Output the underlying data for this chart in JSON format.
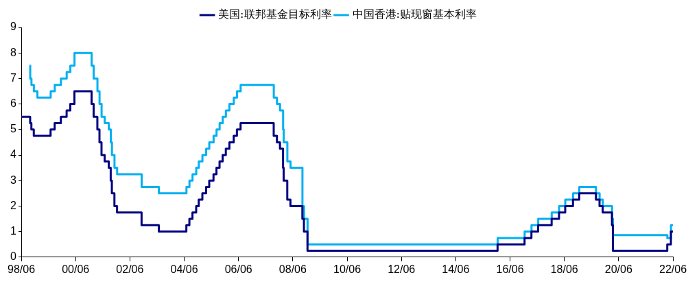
{
  "chart_data": {
    "type": "step",
    "series": [
      {
        "name": "美国:联邦基金目标利率",
        "color": "#000080",
        "x": [
          "1998-06-01",
          "1998-09-29",
          "1998-10-15",
          "1998-11-17",
          "1999-06-30",
          "1999-08-24",
          "1999-11-16",
          "2000-02-02",
          "2000-03-21",
          "2000-05-16",
          "2001-01-03",
          "2001-01-31",
          "2001-03-20",
          "2001-04-18",
          "2001-05-15",
          "2001-06-27",
          "2001-08-21",
          "2001-09-17",
          "2001-10-02",
          "2001-11-06",
          "2001-12-11",
          "2002-11-06",
          "2003-06-25",
          "2004-06-30",
          "2004-08-10",
          "2004-09-21",
          "2004-11-10",
          "2004-12-14",
          "2005-02-02",
          "2005-03-22",
          "2005-05-03",
          "2005-06-30",
          "2005-08-09",
          "2005-09-20",
          "2005-11-01",
          "2005-12-13",
          "2006-01-31",
          "2006-03-28",
          "2006-05-10",
          "2006-06-29",
          "2007-09-18",
          "2007-10-31",
          "2007-12-11",
          "2008-01-22",
          "2008-01-30",
          "2008-03-18",
          "2008-04-30",
          "2008-10-08",
          "2008-10-29",
          "2008-12-16",
          "2015-12-16",
          "2016-12-14",
          "2017-03-15",
          "2017-06-14",
          "2017-12-13",
          "2018-03-21",
          "2018-06-13",
          "2018-09-26",
          "2018-12-19",
          "2019-07-31",
          "2019-09-18",
          "2019-10-30",
          "2020-03-03",
          "2020-03-15",
          "2022-03-16",
          "2022-05-04",
          "2022-06-01"
        ],
        "values": [
          5.5,
          5.25,
          5.0,
          4.75,
          5.0,
          5.25,
          5.5,
          5.75,
          6.0,
          6.5,
          6.0,
          5.5,
          5.0,
          4.5,
          4.0,
          3.75,
          3.5,
          3.0,
          2.5,
          2.0,
          1.75,
          1.25,
          1.0,
          1.25,
          1.5,
          1.75,
          2.0,
          2.25,
          2.5,
          2.75,
          3.0,
          3.25,
          3.5,
          3.75,
          4.0,
          4.25,
          4.5,
          4.75,
          5.0,
          5.25,
          4.75,
          4.5,
          4.25,
          3.5,
          3.0,
          2.25,
          2.0,
          1.5,
          1.0,
          0.25,
          0.5,
          0.75,
          1.0,
          1.25,
          1.5,
          1.75,
          2.0,
          2.25,
          2.5,
          2.25,
          2.0,
          1.75,
          1.25,
          0.25,
          0.5,
          1.0,
          1.0
        ]
      },
      {
        "name": "中国香港:贴现窗基本利率",
        "color": "#00b0f0",
        "x": [
          "1998-09-20",
          "1998-09-30",
          "1998-10-16",
          "1998-11-18",
          "1999-01-05",
          "1999-07-01",
          "1999-08-25",
          "1999-11-17",
          "2000-02-03",
          "2000-03-22",
          "2000-05-17",
          "2001-01-04",
          "2001-02-01",
          "2001-03-21",
          "2001-04-19",
          "2001-05-16",
          "2001-06-28",
          "2001-08-22",
          "2001-09-18",
          "2001-10-03",
          "2001-11-07",
          "2001-12-12",
          "2002-11-07",
          "2003-06-26",
          "2004-07-01",
          "2004-08-11",
          "2004-09-22",
          "2004-11-11",
          "2004-12-15",
          "2005-02-03",
          "2005-03-23",
          "2005-05-04",
          "2005-07-01",
          "2005-08-10",
          "2005-09-21",
          "2005-11-02",
          "2005-12-14",
          "2006-02-01",
          "2006-03-29",
          "2006-05-11",
          "2006-06-30",
          "2007-09-19",
          "2007-11-01",
          "2007-12-12",
          "2008-01-23",
          "2008-01-31",
          "2008-03-19",
          "2008-05-01",
          "2008-10-09",
          "2008-10-30",
          "2008-12-17",
          "2015-12-17",
          "2016-12-15",
          "2017-03-16",
          "2017-06-15",
          "2017-12-14",
          "2018-03-22",
          "2018-06-14",
          "2018-09-27",
          "2018-12-20",
          "2019-08-01",
          "2019-09-19",
          "2019-10-31",
          "2020-03-04",
          "2020-03-16",
          "2022-03-17",
          "2022-05-05",
          "2022-06-01"
        ],
        "values": [
          7.5,
          7.0,
          6.75,
          6.5,
          6.25,
          6.5,
          6.75,
          7.0,
          7.25,
          7.5,
          8.0,
          7.5,
          7.0,
          6.5,
          6.0,
          5.5,
          5.25,
          5.0,
          4.5,
          4.0,
          3.5,
          3.25,
          2.75,
          2.5,
          2.75,
          3.0,
          3.25,
          3.5,
          3.75,
          4.0,
          4.25,
          4.5,
          4.75,
          5.0,
          5.25,
          5.5,
          5.75,
          6.0,
          6.25,
          6.5,
          6.75,
          6.25,
          6.0,
          5.75,
          5.0,
          4.5,
          3.75,
          3.5,
          2.0,
          1.5,
          0.5,
          0.75,
          1.0,
          1.25,
          1.5,
          1.75,
          2.0,
          2.25,
          2.5,
          2.75,
          2.5,
          2.25,
          2.0,
          1.5,
          0.86,
          0.75,
          1.25,
          1.25
        ]
      }
    ],
    "xlim": [
      "1998-06",
      "2022-06"
    ],
    "xticks": [
      {
        "value": "1998-06",
        "label": "98/06"
      },
      {
        "value": "2000-06",
        "label": "00/06"
      },
      {
        "value": "2002-06",
        "label": "02/06"
      },
      {
        "value": "2004-06",
        "label": "04/06"
      },
      {
        "value": "2006-06",
        "label": "06/06"
      },
      {
        "value": "2008-06",
        "label": "08/06"
      },
      {
        "value": "2010-06",
        "label": "10/06"
      },
      {
        "value": "2012-06",
        "label": "12/06"
      },
      {
        "value": "2014-06",
        "label": "14/06"
      },
      {
        "value": "2016-06",
        "label": "16/06"
      },
      {
        "value": "2018-06",
        "label": "18/06"
      },
      {
        "value": "2020-06",
        "label": "20/06"
      },
      {
        "value": "2022-06",
        "label": "22/06"
      }
    ],
    "ylim": [
      0,
      9
    ],
    "yticks": [
      0,
      1,
      2,
      3,
      4,
      5,
      6,
      7,
      8,
      9
    ],
    "legend": "top",
    "grid": false,
    "marker": "none",
    "line_style": "solid"
  }
}
